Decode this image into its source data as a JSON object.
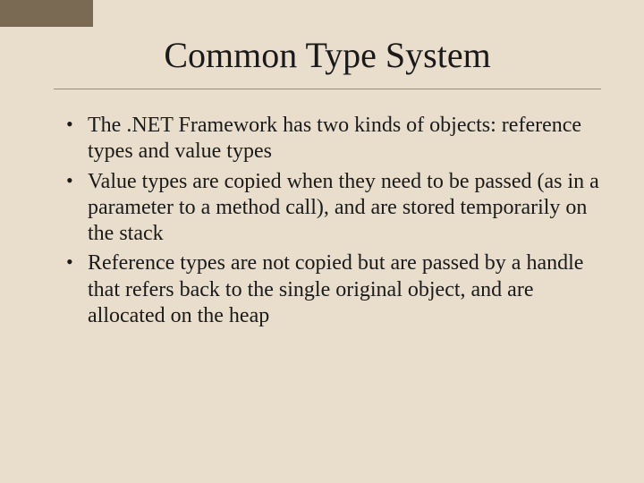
{
  "slide": {
    "background_color": "#e8decb",
    "accent_color": "#7a6a53",
    "rule_color": "#9a8d74",
    "text_color": "#1a1a1a",
    "title": "Common Type System",
    "title_fontsize": 40,
    "body_fontsize": 24,
    "font_family": "Times New Roman",
    "bullets": [
      "The .NET Framework has two kinds of objects: reference types and value types",
      "Value types are copied when they need to be passed (as in a parameter to a method call), and are stored temporarily on the stack",
      "Reference types are not copied but are passed by a handle that refers back to the single original object, and are allocated on the heap"
    ]
  }
}
